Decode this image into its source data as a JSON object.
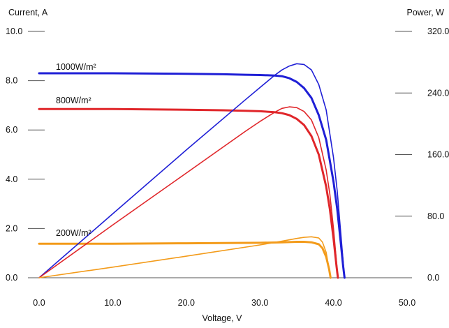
{
  "chart_data": {
    "type": "line",
    "title": "",
    "xlabel": "Voltage, V",
    "ylabel_left": "Current, A",
    "ylabel_right": "Power, W",
    "xlim": [
      0,
      50
    ],
    "ylim_left": [
      0,
      10
    ],
    "ylim_right": [
      0,
      320
    ],
    "x_ticks": [
      "0.0",
      "10.0",
      "20.0",
      "30.0",
      "40.0",
      "50.0"
    ],
    "y_left_ticks": [
      "0.0",
      "2.0",
      "4.0",
      "6.0",
      "8.0",
      "10.0"
    ],
    "y_right_ticks": [
      "0.0",
      "80.0",
      "160.0",
      "240.0",
      "320.0"
    ],
    "grid": false,
    "irradiance_labels": [
      {
        "text": "1000W/m²",
        "color": "#1f1fd6"
      },
      {
        "text": "800W/m²",
        "color": "#e0262a"
      },
      {
        "text": "200W/m²",
        "color": "#f39b1a"
      }
    ],
    "series": [
      {
        "kind": "current",
        "axis": "left",
        "color": "#1f1fd6",
        "x": [
          0,
          10,
          20,
          25,
          28,
          30,
          32,
          33,
          34,
          35,
          36,
          37,
          38,
          39,
          40,
          40.5,
          41,
          41.3,
          41.5
        ],
        "y": [
          8.3,
          8.3,
          8.28,
          8.26,
          8.24,
          8.23,
          8.21,
          8.18,
          8.1,
          7.95,
          7.7,
          7.3,
          6.6,
          5.6,
          3.9,
          2.8,
          1.4,
          0.5,
          0
        ]
      },
      {
        "kind": "current",
        "axis": "left",
        "color": "#e0262a",
        "x": [
          0,
          10,
          20,
          25,
          28,
          30,
          32,
          33,
          34,
          35,
          36,
          37,
          38,
          39,
          39.5,
          40,
          40.4,
          40.6
        ],
        "y": [
          6.85,
          6.85,
          6.82,
          6.8,
          6.78,
          6.76,
          6.72,
          6.68,
          6.6,
          6.45,
          6.2,
          5.75,
          5.0,
          3.7,
          2.8,
          1.6,
          0.5,
          0
        ]
      },
      {
        "kind": "current",
        "axis": "left",
        "color": "#f39b1a",
        "x": [
          0,
          10,
          20,
          30,
          33,
          35,
          36,
          37,
          38,
          38.5,
          39,
          39.4,
          39.6
        ],
        "y": [
          1.38,
          1.38,
          1.4,
          1.42,
          1.44,
          1.46,
          1.46,
          1.44,
          1.36,
          1.2,
          0.85,
          0.35,
          0
        ]
      },
      {
        "kind": "power",
        "axis": "right",
        "color": "#1f1fd6",
        "x": [
          0,
          10,
          20,
          28,
          30,
          32,
          33,
          34,
          35,
          36,
          37,
          38,
          39,
          40,
          40.5,
          41,
          41.5
        ],
        "y": [
          0,
          83,
          166,
          231,
          247,
          263,
          270,
          275,
          278,
          277,
          270,
          251,
          218,
          156,
          113,
          57,
          0
        ]
      },
      {
        "kind": "power",
        "axis": "right",
        "color": "#e0262a",
        "x": [
          0,
          10,
          20,
          28,
          30,
          32,
          33,
          34,
          35,
          36,
          37,
          38,
          39,
          39.5,
          40,
          40.6
        ],
        "y": [
          0,
          68.5,
          136,
          190,
          203,
          215,
          220,
          222,
          221,
          216,
          205,
          182,
          140,
          109,
          64,
          0
        ]
      },
      {
        "kind": "power",
        "axis": "right",
        "color": "#f39b1a",
        "x": [
          0,
          10,
          20,
          30,
          33,
          35,
          36,
          37,
          38,
          38.5,
          39,
          39.6
        ],
        "y": [
          0,
          13.8,
          28,
          42.6,
          47.5,
          51,
          52.5,
          53.2,
          51.7,
          46.2,
          33,
          0
        ]
      }
    ]
  }
}
